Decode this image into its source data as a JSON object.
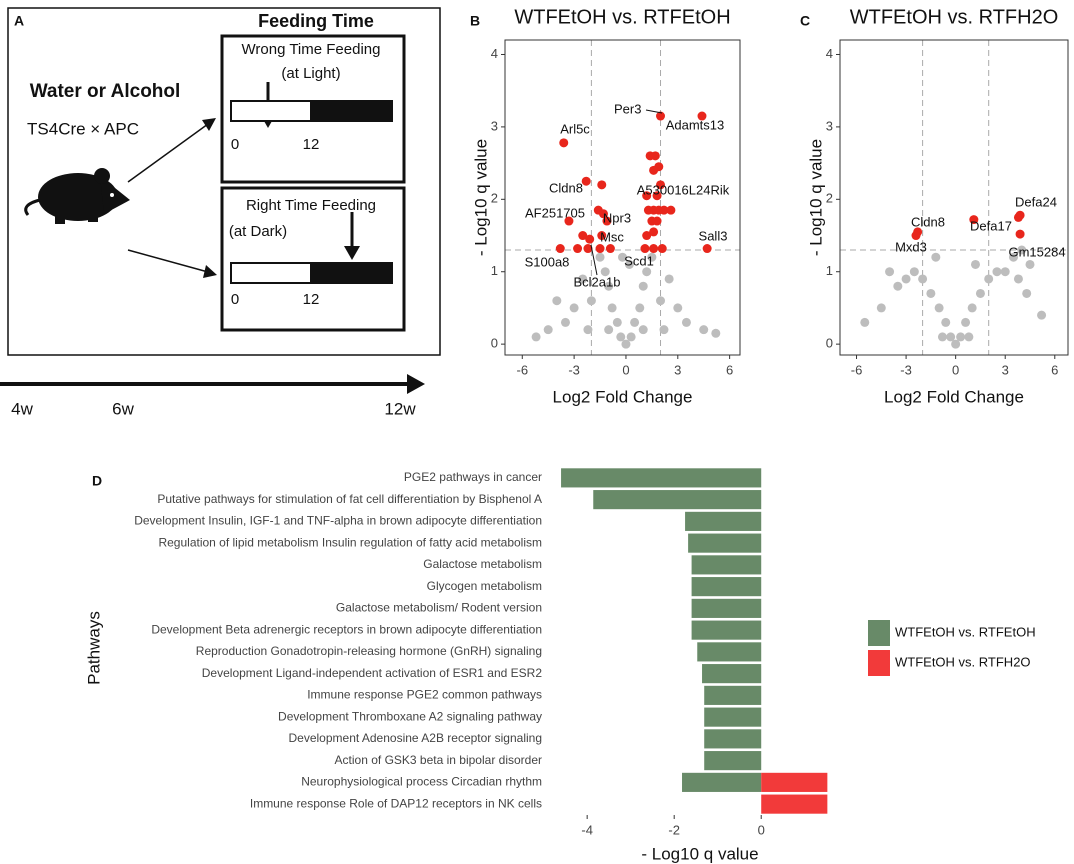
{
  "diagram": {
    "panel": "A",
    "header": "Feeding Time",
    "treatment": "Water or Alcohol",
    "genotype": "TS4Cre × APC",
    "wrong": {
      "title": "Wrong Time Feeding",
      "note": "(at Light)",
      "start": "0",
      "mid": "12"
    },
    "right": {
      "title": "Right Time Feeding",
      "note": "(at Dark)",
      "start": "0",
      "mid": "12"
    },
    "timeline": [
      "4w",
      "6w",
      "12w"
    ]
  },
  "chart_data": [
    {
      "type": "scatter",
      "panel": "B",
      "title": "WTFEtOH vs. RTFEtOH",
      "xlabel": "Log2 Fold Change",
      "ylabel": "- Log10 q value",
      "xlim": [
        -7,
        6.6
      ],
      "ylim": [
        -0.15,
        4.2
      ],
      "xticks": [
        -6,
        -3,
        0,
        3,
        6
      ],
      "yticks": [
        0,
        1,
        2,
        3,
        4
      ],
      "vlines": [
        -2,
        2
      ],
      "hline": 1.3,
      "series": [
        {
          "color": "#bdbdbd",
          "x": [
            0,
            0.3,
            -0.3,
            0.5,
            -0.5,
            0.8,
            -0.8,
            1,
            -1,
            1.2,
            -1.2,
            1.5,
            -1.5,
            2,
            -2,
            2.5,
            -2.5,
            3,
            -3,
            3.5,
            -3.5,
            4.5,
            -4.5,
            -5.2,
            5.2,
            0.2,
            -0.2,
            1,
            -1,
            2.2,
            -2.2,
            -4
          ],
          "y": [
            0,
            0.1,
            0.1,
            0.3,
            0.3,
            0.5,
            0.5,
            0.8,
            0.8,
            1,
            1,
            1.2,
            1.2,
            0.6,
            0.6,
            0.9,
            0.9,
            0.5,
            0.5,
            0.3,
            0.3,
            0.2,
            0.2,
            0.1,
            0.15,
            1.1,
            1.2,
            0.2,
            0.2,
            0.2,
            0.2,
            0.6
          ]
        },
        {
          "color": "#e8261c",
          "x": [
            2,
            4.4,
            -3.6,
            -2.3,
            -1.4,
            1.4,
            1.7,
            1.9,
            1.6,
            2,
            1.2,
            1.8,
            -1.6,
            -1.3,
            1.3,
            1.6,
            1.9,
            2.2,
            2.6,
            -3.3,
            -1.1,
            1.5,
            1.8,
            -2.5,
            -1.4,
            1.6,
            -2.1,
            1.2,
            -3.8,
            -2.8,
            -2.2,
            -1.5,
            -0.9,
            1.1,
            1.6,
            2.1,
            4.7
          ],
          "y": [
            3.15,
            3.15,
            2.78,
            2.25,
            2.2,
            2.6,
            2.6,
            2.45,
            2.4,
            2.2,
            2.05,
            2.05,
            1.85,
            1.8,
            1.85,
            1.85,
            1.85,
            1.85,
            1.85,
            1.7,
            1.7,
            1.7,
            1.7,
            1.5,
            1.5,
            1.55,
            1.45,
            1.5,
            1.32,
            1.32,
            1.32,
            1.32,
            1.32,
            1.32,
            1.32,
            1.32,
            1.32
          ]
        }
      ],
      "annotations": [
        "Per3",
        "Adamts13",
        "Arl5c",
        "Cldn8",
        "A530016L24Rik",
        "AF251705",
        "Npr3",
        "Msc",
        "Sall3",
        "S100a8",
        "Scd1",
        "Bcl2a1b"
      ]
    },
    {
      "type": "scatter",
      "panel": "C",
      "title": "WTFEtOH vs. RTFH2O",
      "xlabel": "Log2 Fold Change",
      "ylabel": "- Log10 q value",
      "xlim": [
        -7,
        6.8
      ],
      "ylim": [
        -0.15,
        4.2
      ],
      "xticks": [
        -6,
        -3,
        0,
        3,
        6
      ],
      "yticks": [
        0,
        1,
        2,
        3,
        4
      ],
      "vlines": [
        -2,
        2
      ],
      "hline": 1.3,
      "series": [
        {
          "color": "#bdbdbd",
          "x": [
            0,
            0.3,
            -0.3,
            0.6,
            -0.6,
            1,
            -1,
            1.5,
            -1.5,
            2,
            -2,
            2.5,
            -2.5,
            3,
            -3,
            3.5,
            -3.5,
            4,
            -4,
            4.5,
            -4.5,
            5.2,
            -5.5,
            0.8,
            -0.8,
            3.8,
            4.3,
            -1.2,
            1.2
          ],
          "y": [
            0,
            0.1,
            0.1,
            0.3,
            0.3,
            0.5,
            0.5,
            0.7,
            0.7,
            0.9,
            0.9,
            1,
            1,
            1,
            0.9,
            1.2,
            0.8,
            1.3,
            1,
            1.1,
            0.5,
            0.4,
            0.3,
            0.1,
            0.1,
            0.9,
            0.7,
            1.2,
            1.1
          ]
        },
        {
          "color": "#e8261c",
          "x": [
            -2.3,
            -2.4,
            1.1,
            3.9,
            3.8,
            3.9
          ],
          "y": [
            1.55,
            1.5,
            1.72,
            1.78,
            1.75,
            1.52
          ]
        }
      ],
      "annotations": [
        "Cldn8",
        "Mxd3",
        "Defa17",
        "Defa24",
        "Gm15284"
      ]
    },
    {
      "type": "barh",
      "panel": "D",
      "xlabel": "- Log10 q value",
      "ylabel": "Pathways",
      "xlim": [
        -4.9,
        2.5
      ],
      "xticks": [
        -4,
        -2,
        0
      ],
      "categories": [
        "PGE2 pathways in cancer",
        "Putative pathways for stimulation of fat cell differentiation by Bisphenol A",
        "Development Insulin, IGF-1 and TNF-alpha in brown adipocyte differentiation",
        "Regulation of lipid metabolism Insulin regulation of fatty acid metabolism",
        "Galactose metabolism",
        "Glycogen metabolism",
        "Galactose metabolism/ Rodent version",
        "Development Beta adrenergic receptors in brown adipocyte differentiation",
        "Reproduction Gonadotropin-releasing hormone (GnRH) signaling",
        "Development Ligand-independent activation of ESR1 and ESR2",
        "Immune response PGE2 common pathways",
        "Development Thromboxane A2 signaling pathway",
        "Development Adenosine A2B receptor signaling",
        "Action of GSK3 beta in bipolar disorder",
        "Neurophysiological process Circadian rhythm",
        "Immune response Role of DAP12 receptors in NK cells"
      ],
      "series": [
        {
          "name": "WTFEtOH vs. RTFEtOH",
          "color": "#688a68",
          "values": [
            -4.6,
            -3.86,
            -1.75,
            -1.68,
            -1.6,
            -1.6,
            -1.6,
            -1.6,
            -1.47,
            -1.36,
            -1.31,
            -1.31,
            -1.31,
            -1.31,
            -1.82,
            null
          ]
        },
        {
          "name": "WTFEtOH vs. RTFH2O",
          "color": "#f23a3a",
          "values": [
            null,
            null,
            null,
            null,
            null,
            null,
            null,
            null,
            null,
            null,
            null,
            null,
            null,
            null,
            1.52,
            1.52
          ]
        }
      ]
    }
  ]
}
